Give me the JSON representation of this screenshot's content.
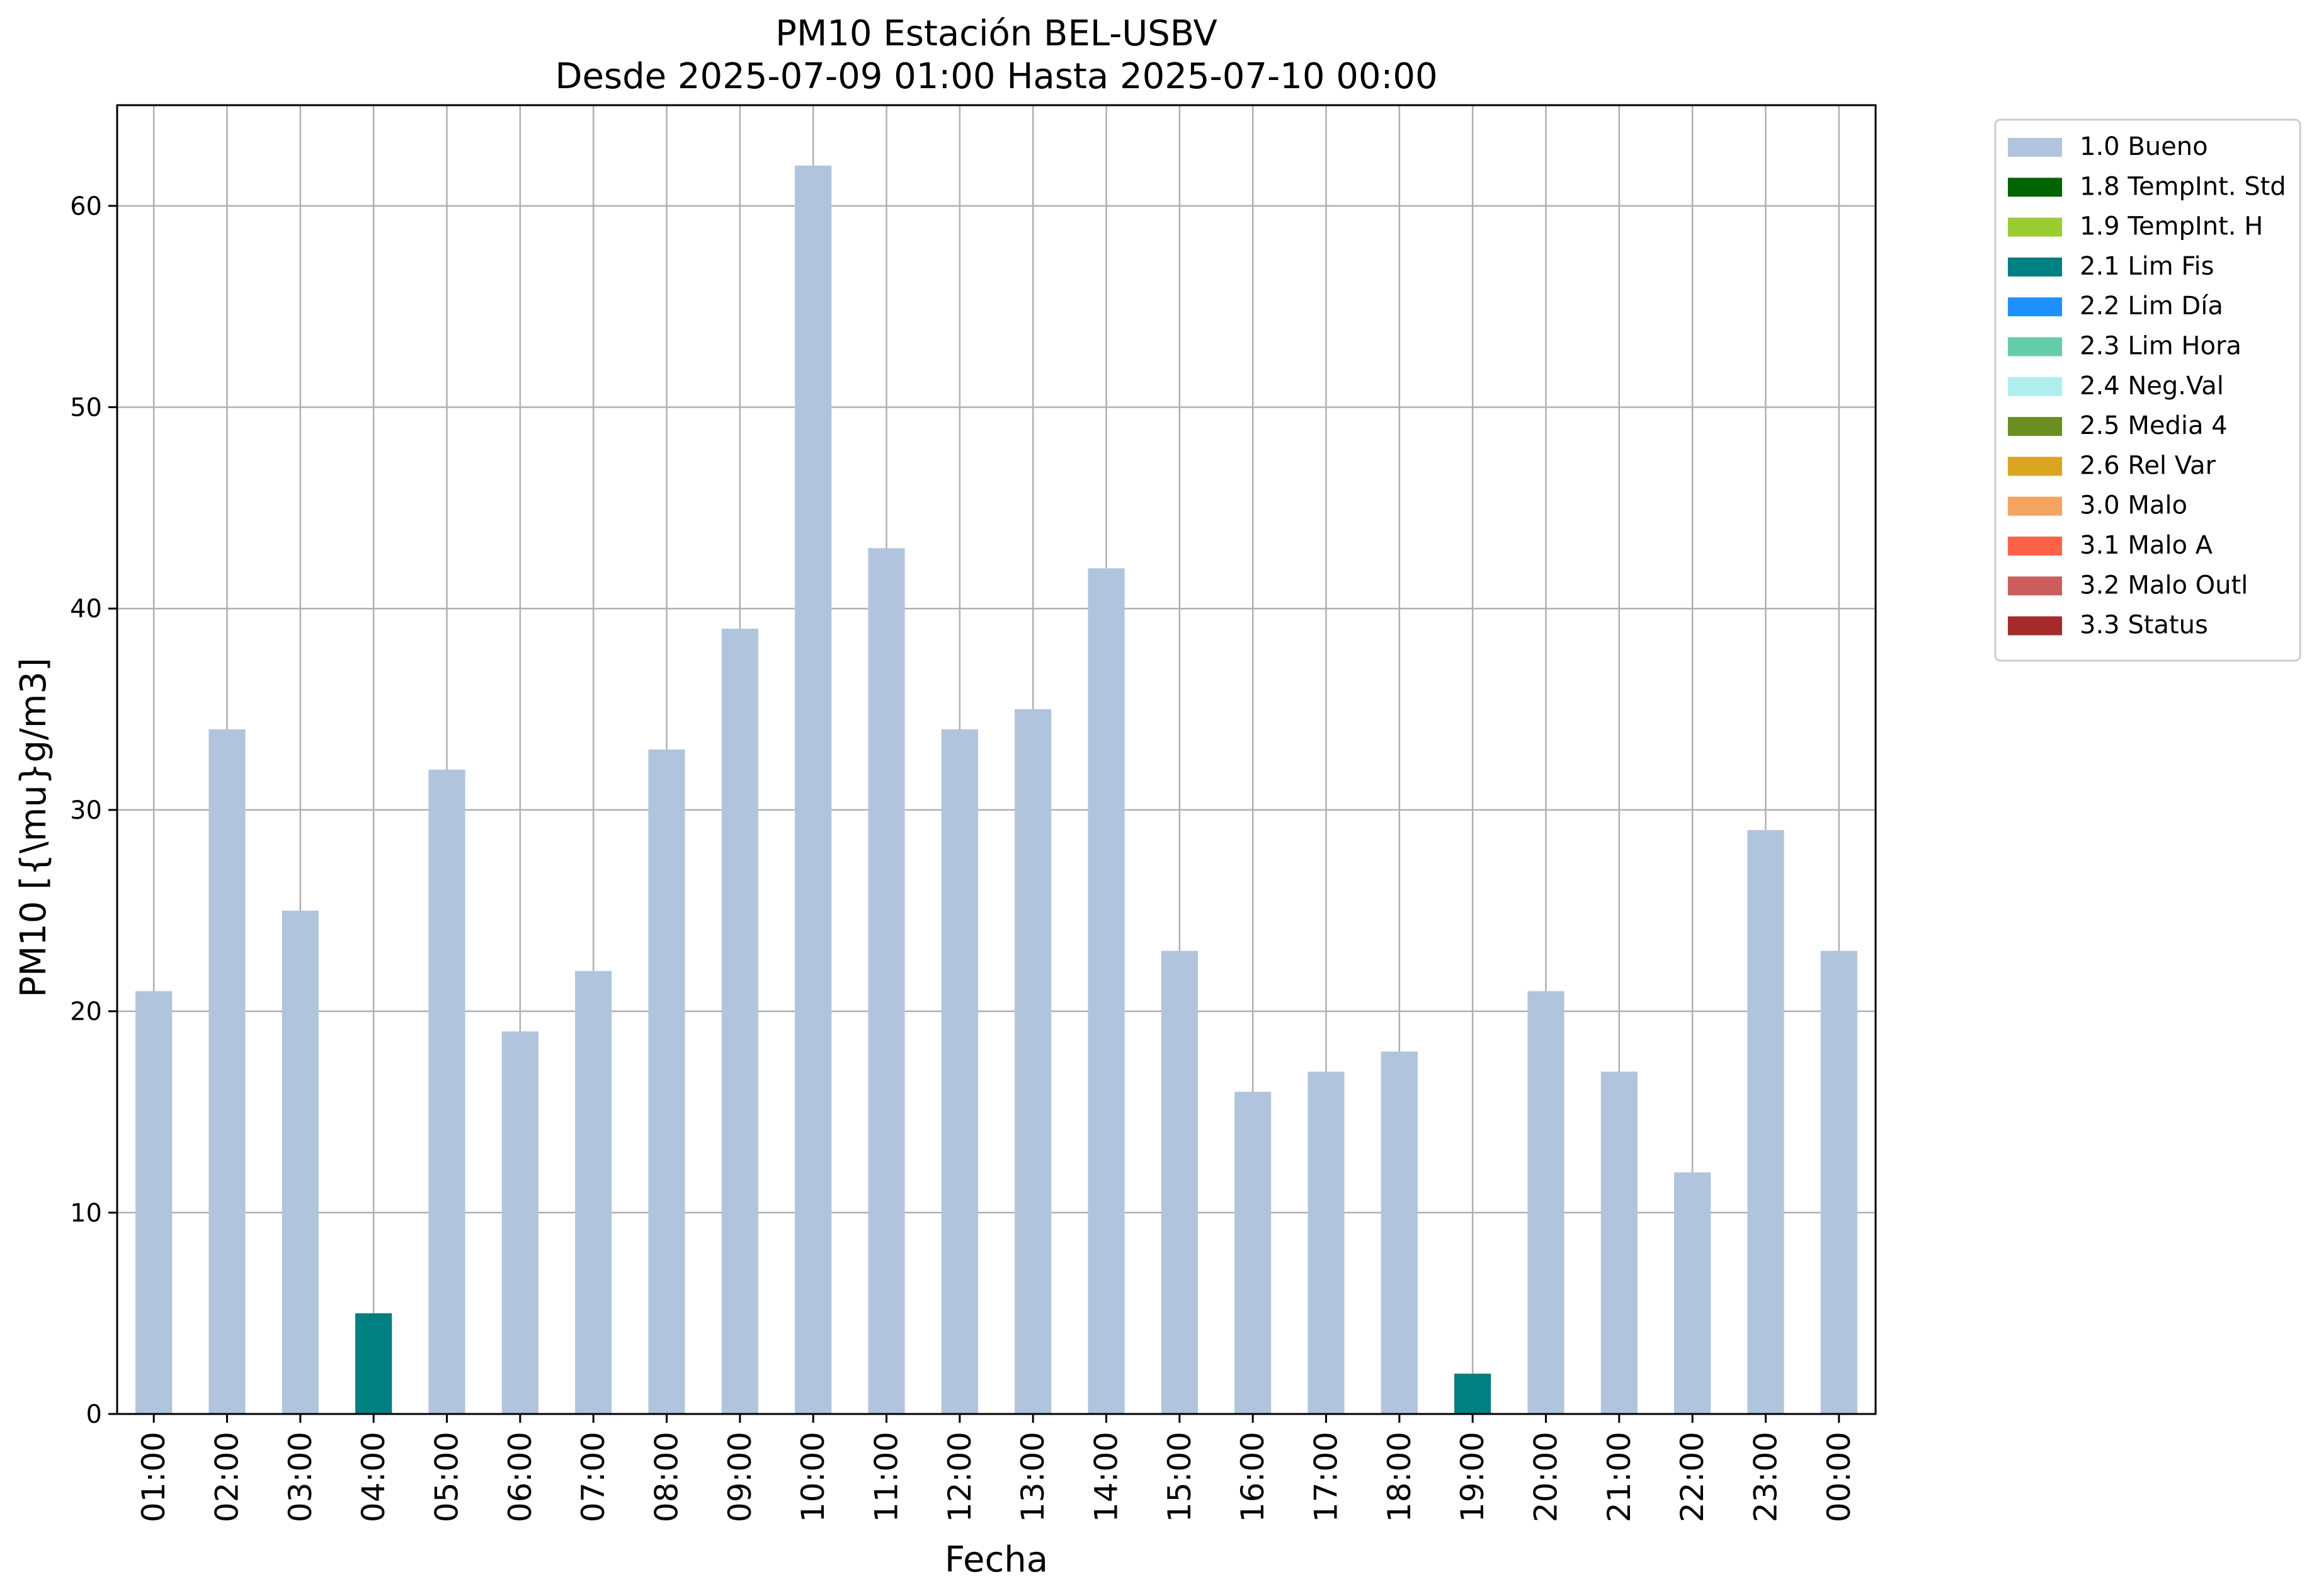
{
  "chart_data": {
    "type": "bar",
    "title": "PM10 Estación BEL-USBV",
    "subtitle": "Desde 2025-07-09 01:00 Hasta 2025-07-10 00:00",
    "xlabel": "Fecha",
    "ylabel": "PM10 [{\\mu}g/m3]",
    "ylim": [
      0,
      65
    ],
    "yticks": [
      0,
      10,
      20,
      30,
      40,
      50,
      60
    ],
    "grid": true,
    "stacked": true,
    "legend_position": "outside-right",
    "categories": [
      "01:00",
      "02:00",
      "03:00",
      "04:00",
      "05:00",
      "06:00",
      "07:00",
      "08:00",
      "09:00",
      "10:00",
      "11:00",
      "12:00",
      "13:00",
      "14:00",
      "15:00",
      "16:00",
      "17:00",
      "18:00",
      "19:00",
      "20:00",
      "21:00",
      "22:00",
      "23:00",
      "00:00"
    ],
    "series": [
      {
        "name": "1.0 Bueno",
        "color": "#b0c4de",
        "values": [
          21,
          34,
          25,
          0,
          32,
          19,
          22,
          33,
          39,
          62,
          43,
          34,
          35,
          42,
          23,
          16,
          17,
          18,
          0,
          21,
          17,
          12,
          29,
          23
        ]
      },
      {
        "name": "1.8 TempInt. Std",
        "color": "#006400",
        "values": [
          0,
          0,
          0,
          0,
          0,
          0,
          0,
          0,
          0,
          0,
          0,
          0,
          0,
          0,
          0,
          0,
          0,
          0,
          0,
          0,
          0,
          0,
          0,
          0
        ]
      },
      {
        "name": "1.9 TempInt. H",
        "color": "#9acd32",
        "values": [
          0,
          0,
          0,
          0,
          0,
          0,
          0,
          0,
          0,
          0,
          0,
          0,
          0,
          0,
          0,
          0,
          0,
          0,
          0,
          0,
          0,
          0,
          0,
          0
        ]
      },
      {
        "name": "2.1 Lim Fis",
        "color": "#008080",
        "values": [
          0,
          0,
          0,
          5,
          0,
          0,
          0,
          0,
          0,
          0,
          0,
          0,
          0,
          0,
          0,
          0,
          0,
          0,
          2,
          0,
          0,
          0,
          0,
          0
        ]
      },
      {
        "name": "2.2 Lim Día",
        "color": "#1e90ff",
        "values": [
          0,
          0,
          0,
          0,
          0,
          0,
          0,
          0,
          0,
          0,
          0,
          0,
          0,
          0,
          0,
          0,
          0,
          0,
          0,
          0,
          0,
          0,
          0,
          0
        ]
      },
      {
        "name": "2.3 Lim Hora",
        "color": "#66cdaa",
        "values": [
          0,
          0,
          0,
          0,
          0,
          0,
          0,
          0,
          0,
          0,
          0,
          0,
          0,
          0,
          0,
          0,
          0,
          0,
          0,
          0,
          0,
          0,
          0,
          0
        ]
      },
      {
        "name": "2.4 Neg.Val",
        "color": "#afeeee",
        "values": [
          0,
          0,
          0,
          0,
          0,
          0,
          0,
          0,
          0,
          0,
          0,
          0,
          0,
          0,
          0,
          0,
          0,
          0,
          0,
          0,
          0,
          0,
          0,
          0
        ]
      },
      {
        "name": "2.5 Media 4",
        "color": "#6b8e23",
        "values": [
          0,
          0,
          0,
          0,
          0,
          0,
          0,
          0,
          0,
          0,
          0,
          0,
          0,
          0,
          0,
          0,
          0,
          0,
          0,
          0,
          0,
          0,
          0,
          0
        ]
      },
      {
        "name": "2.6 Rel Var",
        "color": "#daa520",
        "values": [
          0,
          0,
          0,
          0,
          0,
          0,
          0,
          0,
          0,
          0,
          0,
          0,
          0,
          0,
          0,
          0,
          0,
          0,
          0,
          0,
          0,
          0,
          0,
          0
        ]
      },
      {
        "name": "3.0 Malo",
        "color": "#f4a460",
        "values": [
          0,
          0,
          0,
          0,
          0,
          0,
          0,
          0,
          0,
          0,
          0,
          0,
          0,
          0,
          0,
          0,
          0,
          0,
          0,
          0,
          0,
          0,
          0,
          0
        ]
      },
      {
        "name": "3.1 Malo A",
        "color": "#ff6347",
        "values": [
          0,
          0,
          0,
          0,
          0,
          0,
          0,
          0,
          0,
          0,
          0,
          0,
          0,
          0,
          0,
          0,
          0,
          0,
          0,
          0,
          0,
          0,
          0,
          0
        ]
      },
      {
        "name": "3.2 Malo Outl",
        "color": "#cd5c5c",
        "values": [
          0,
          0,
          0,
          0,
          0,
          0,
          0,
          0,
          0,
          0,
          0,
          0,
          0,
          0,
          0,
          0,
          0,
          0,
          0,
          0,
          0,
          0,
          0,
          0
        ]
      },
      {
        "name": "3.3 Status",
        "color": "#a52a2a",
        "values": [
          0,
          0,
          0,
          0,
          0,
          0,
          0,
          0,
          0,
          0,
          0,
          0,
          0,
          0,
          0,
          0,
          0,
          0,
          0,
          0,
          0,
          0,
          0,
          0
        ]
      }
    ]
  }
}
